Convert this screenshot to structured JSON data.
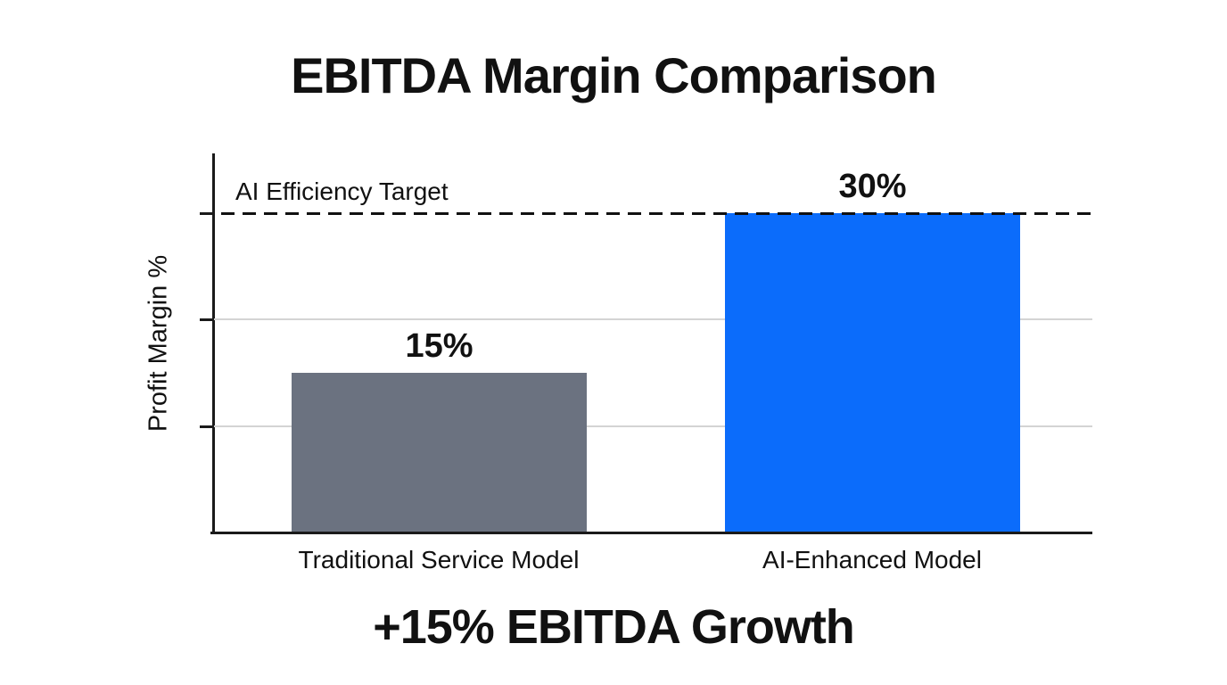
{
  "chart_data": {
    "type": "bar",
    "title": "EBITDA Margin Comparison",
    "ylabel": "Profit Margin %",
    "xlabel": "",
    "categories": [
      "Traditional Service Model",
      "AI-Enhanced Model"
    ],
    "values": [
      15,
      30
    ],
    "value_labels": [
      "15%",
      "30%"
    ],
    "bar_colors": [
      "#6b7280",
      "#0b6cfb"
    ],
    "ylim": [
      0,
      35.4
    ],
    "gridline_values": [
      10,
      20
    ],
    "tick_values": [
      10,
      20,
      30
    ],
    "grid": true,
    "legend": "none",
    "target_line": {
      "value": 30,
      "label": "AI Efficiency Target",
      "style": "dashed",
      "color": "#111111"
    },
    "colors": {
      "grid": "#d4d4d4",
      "axis": "#1a1a1a",
      "text": "#111111",
      "background": "#ffffff"
    }
  },
  "caption": "+15% EBITDA Growth"
}
